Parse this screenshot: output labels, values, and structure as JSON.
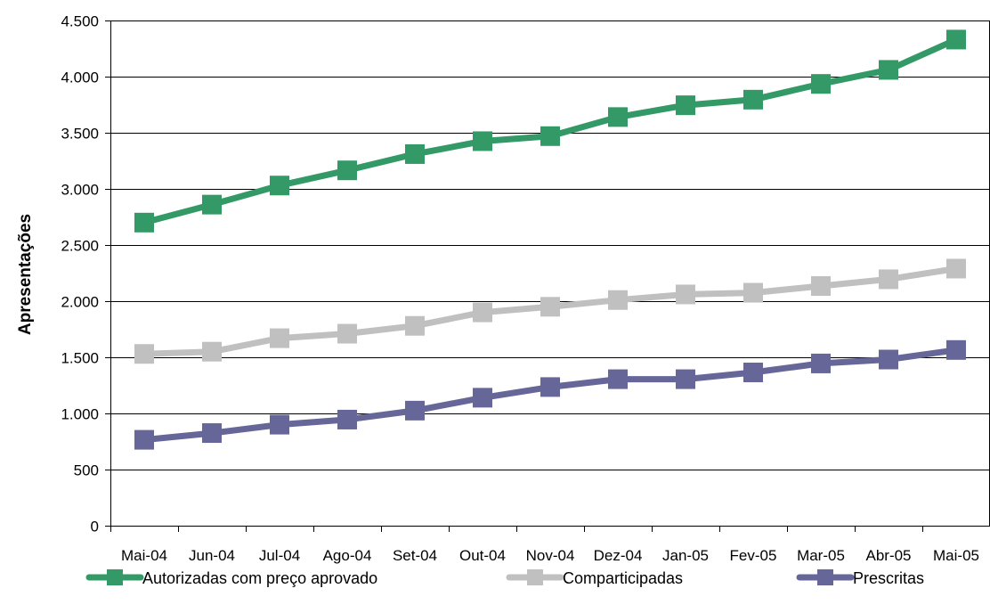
{
  "chart_data": {
    "type": "line",
    "title": "",
    "xlabel": "",
    "ylabel": "Apresentações",
    "ylim": [
      0,
      4500
    ],
    "yticks": [
      0,
      500,
      1000,
      1500,
      2000,
      2500,
      3000,
      3500,
      4000,
      4500
    ],
    "ytick_labels": [
      "0",
      "500",
      "1.000",
      "1.500",
      "2.000",
      "2.500",
      "3.000",
      "3.500",
      "4.000",
      "4.500"
    ],
    "grid": true,
    "legend_position": "bottom",
    "categories": [
      "Mai-04",
      "Jun-04",
      "Jul-04",
      "Ago-04",
      "Set-04",
      "Out-04",
      "Nov-04",
      "Dez-04",
      "Jan-05",
      "Fev-05",
      "Mar-05",
      "Abr-05",
      "Mai-05"
    ],
    "series": [
      {
        "name": "Autorizadas com preço aprovado",
        "color": "#339966",
        "values": [
          2700,
          2860,
          3030,
          3165,
          3310,
          3425,
          3470,
          3640,
          3745,
          3795,
          3935,
          4060,
          4330
        ]
      },
      {
        "name": "Comparticipadas",
        "color": "#c0c0c0",
        "values": [
          1530,
          1550,
          1670,
          1710,
          1780,
          1900,
          1950,
          2010,
          2060,
          2075,
          2135,
          2195,
          2290
        ]
      },
      {
        "name": "Prescritas",
        "color": "#666699",
        "values": [
          765,
          825,
          900,
          945,
          1025,
          1140,
          1235,
          1305,
          1305,
          1365,
          1445,
          1480,
          1565
        ]
      }
    ]
  }
}
